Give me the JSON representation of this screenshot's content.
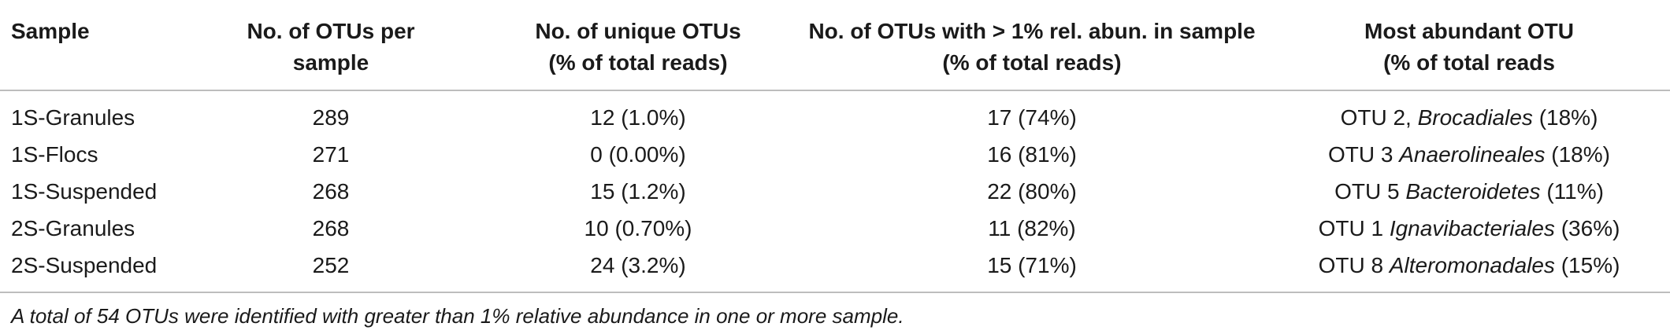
{
  "table": {
    "headers": [
      [
        "Sample"
      ],
      [
        "No. of OTUs per",
        "sample"
      ],
      [
        "No. of unique OTUs",
        "(% of total reads)"
      ],
      [
        "No. of OTUs with > 1% rel. abun. in sample",
        "(% of total reads)"
      ],
      [
        "Most abundant OTU",
        "(% of total reads"
      ]
    ],
    "rows": [
      {
        "sample": "1S-Granules",
        "otus": "289",
        "unique": "12 (1.0%)",
        "over1": "17 (74%)",
        "top_otu": "OTU 2,",
        "top_taxon": "Brocadiales",
        "top_pct": "(18%)"
      },
      {
        "sample": "1S-Flocs",
        "otus": "271",
        "unique": "0 (0.00%)",
        "over1": "16 (81%)",
        "top_otu": "OTU 3",
        "top_taxon": "Anaerolineales",
        "top_pct": "(18%)"
      },
      {
        "sample": "1S-Suspended",
        "otus": "268",
        "unique": "15 (1.2%)",
        "over1": "22 (80%)",
        "top_otu": "OTU 5",
        "top_taxon": "Bacteroidetes",
        "top_pct": "(11%)"
      },
      {
        "sample": "2S-Granules",
        "otus": "268",
        "unique": "10 (0.70%)",
        "over1": "11 (82%)",
        "top_otu": "OTU 1",
        "top_taxon": "Ignavibacteriales",
        "top_pct": "(36%)"
      },
      {
        "sample": "2S-Suspended",
        "otus": "252",
        "unique": "24 (3.2%)",
        "over1": "15 (71%)",
        "top_otu": "OTU 8",
        "top_taxon": "Alteromonadales",
        "top_pct": "(15%)"
      }
    ]
  },
  "footnote": "A total of 54 OTUs were identified with greater than 1% relative abundance in one or more sample."
}
